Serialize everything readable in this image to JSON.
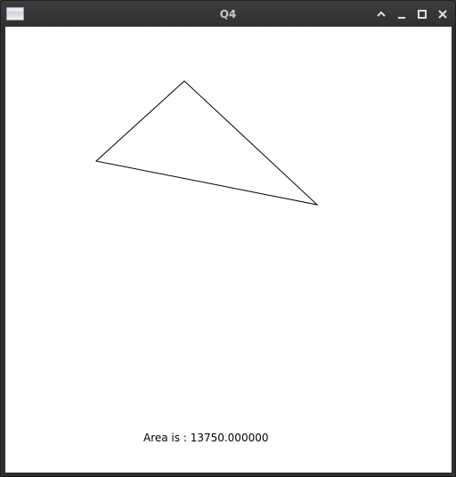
{
  "window": {
    "title": "Q4",
    "icons": [
      "app-window-icon",
      "chevron-up-icon",
      "minimize-icon",
      "maximize-icon",
      "close-icon"
    ]
  },
  "content": {
    "area_label": "Area is : 13750.000000",
    "triangle": {
      "stroke_color": "#000000"
    }
  }
}
